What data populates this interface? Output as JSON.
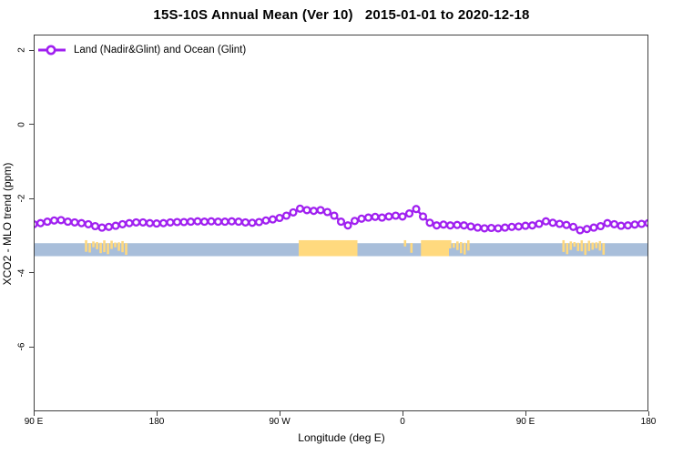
{
  "title": "15S-10S Annual Mean (Ver 10)   2015-01-01 to 2020-12-18",
  "legend": {
    "label": "Land (Nadir&Glint) and Ocean (Glint)"
  },
  "colors": {
    "series": "#A020F0",
    "marker_fill": "#FFFFFF",
    "ocean_strip": "#A8BEDA",
    "land_strip": "#FFD97E",
    "axis": "#404040",
    "text": "#000000"
  },
  "chart_data": {
    "type": "line",
    "title": "15S-10S Annual Mean (Ver 10)   2015-01-01 to 2020-12-18",
    "xlabel": "Longitude (deg E)",
    "ylabel": "XCO2 - MLO trend (ppm)",
    "legend_position": "top-left-inside",
    "grid": false,
    "marker": "open-circle",
    "x_range_deg": [
      90,
      540
    ],
    "y_range": [
      2.42,
      -7.73
    ],
    "x_ticks": [
      {
        "deg": 90,
        "label": "90 E"
      },
      {
        "deg": 180,
        "label": "180"
      },
      {
        "deg": 270,
        "label": "90 W"
      },
      {
        "deg": 360,
        "label": "0"
      },
      {
        "deg": 450,
        "label": "90 E"
      },
      {
        "deg": 540,
        "label": "180"
      }
    ],
    "y_ticks": [
      2,
      0,
      -2,
      -4,
      -6
    ],
    "x_deg": [
      90,
      95,
      100,
      105,
      110,
      115,
      120,
      125,
      130,
      135,
      140,
      145,
      150,
      155,
      160,
      165,
      170,
      175,
      180,
      185,
      190,
      195,
      200,
      205,
      210,
      215,
      220,
      225,
      230,
      235,
      240,
      245,
      250,
      255,
      260,
      265,
      270,
      275,
      280,
      285,
      290,
      295,
      300,
      305,
      310,
      315,
      320,
      325,
      330,
      335,
      340,
      345,
      350,
      355,
      360,
      365,
      370,
      375,
      380,
      385,
      390,
      395,
      400,
      405,
      410,
      415,
      420,
      425,
      430,
      435,
      440,
      445,
      450,
      455,
      460,
      465,
      470,
      475,
      480,
      485,
      490,
      495,
      500,
      505,
      510,
      515,
      520,
      525,
      530,
      535,
      540
    ],
    "series": [
      {
        "name": "Land (Nadir&Glint) and Ocean (Glint)",
        "values": [
          -2.69,
          -2.66,
          -2.62,
          -2.59,
          -2.58,
          -2.62,
          -2.64,
          -2.66,
          -2.69,
          -2.74,
          -2.78,
          -2.76,
          -2.73,
          -2.69,
          -2.66,
          -2.64,
          -2.64,
          -2.66,
          -2.67,
          -2.66,
          -2.64,
          -2.63,
          -2.63,
          -2.62,
          -2.61,
          -2.62,
          -2.61,
          -2.62,
          -2.62,
          -2.61,
          -2.62,
          -2.64,
          -2.65,
          -2.63,
          -2.59,
          -2.56,
          -2.52,
          -2.46,
          -2.37,
          -2.27,
          -2.31,
          -2.33,
          -2.31,
          -2.36,
          -2.46,
          -2.62,
          -2.72,
          -2.6,
          -2.54,
          -2.51,
          -2.49,
          -2.51,
          -2.48,
          -2.46,
          -2.48,
          -2.4,
          -2.28,
          -2.48,
          -2.65,
          -2.72,
          -2.7,
          -2.72,
          -2.71,
          -2.72,
          -2.75,
          -2.78,
          -2.8,
          -2.79,
          -2.8,
          -2.78,
          -2.76,
          -2.75,
          -2.73,
          -2.72,
          -2.68,
          -2.61,
          -2.65,
          -2.68,
          -2.71,
          -2.76,
          -2.85,
          -2.82,
          -2.78,
          -2.74,
          -2.66,
          -2.69,
          -2.73,
          -2.72,
          -2.7,
          -2.68,
          -2.66
        ]
      }
    ],
    "map_strip": {
      "description": "latitude-band land/ocean strip",
      "band_y_values": [
        -3.2,
        -3.55
      ],
      "land_top_value": -3.12,
      "land_segments": [
        {
          "from_deg": 127.5,
          "to_deg": 157.5,
          "style": "dense"
        },
        {
          "from_deg": 284.0,
          "to_deg": 327.0,
          "style": "solid"
        },
        {
          "from_deg": 361.0,
          "to_deg": 369.0,
          "style": "sparse"
        },
        {
          "from_deg": 373.5,
          "to_deg": 394.0,
          "style": "solid"
        },
        {
          "from_deg": 394.0,
          "to_deg": 410.0,
          "style": "dense"
        },
        {
          "from_deg": 477.0,
          "to_deg": 509.0,
          "style": "dense"
        }
      ]
    }
  }
}
